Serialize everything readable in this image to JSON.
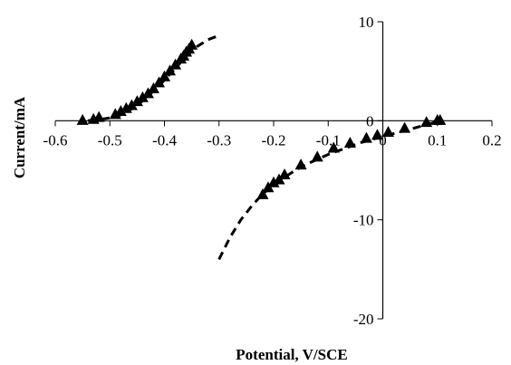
{
  "chart_data": {
    "type": "scatter",
    "title": "",
    "xlabel": "Potential, V/SCE",
    "ylabel": "Current/mA",
    "xlim": [
      -0.6,
      0.2
    ],
    "ylim": [
      -20,
      10
    ],
    "x_ticks": [
      -0.6,
      -0.5,
      -0.4,
      -0.3,
      -0.2,
      -0.1,
      0,
      0.1,
      0.2
    ],
    "x_tick_labels": [
      "-0.6",
      "-0.5",
      "-0.4",
      "-0.3",
      "-0.2",
      "-0.1",
      "0",
      "0.1",
      "0.2"
    ],
    "y_ticks": [
      10,
      0,
      -10,
      -20
    ],
    "y_tick_labels": [
      "10",
      "0",
      "-10",
      "-20"
    ],
    "grid": false,
    "legend": "none",
    "colors": {
      "marks": "#000000"
    },
    "series": [
      {
        "style": "triangle-markers",
        "x": [
          -0.55,
          -0.53,
          -0.52,
          -0.49,
          -0.48,
          -0.47,
          -0.46,
          -0.45,
          -0.44,
          -0.43,
          -0.42,
          -0.41,
          -0.4,
          -0.39,
          -0.38,
          -0.37,
          -0.365,
          -0.36,
          -0.355,
          -0.35
        ],
        "y": [
          0,
          0.1,
          0.3,
          0.6,
          0.9,
          1.2,
          1.5,
          1.9,
          2.3,
          2.7,
          3.2,
          3.8,
          4.4,
          5.0,
          5.6,
          6.2,
          6.5,
          6.9,
          7.2,
          7.6
        ]
      },
      {
        "style": "dashed-line",
        "x": [
          -0.54,
          -0.52,
          -0.5,
          -0.48,
          -0.46,
          -0.44,
          -0.42,
          -0.4,
          -0.38,
          -0.36,
          -0.34,
          -0.32,
          -0.3
        ],
        "y": [
          0,
          0.1,
          0.3,
          0.6,
          1.2,
          2.0,
          3.0,
          4.1,
          5.3,
          6.5,
          7.5,
          8.2,
          8.6
        ]
      },
      {
        "style": "triangle-markers",
        "x": [
          -0.22,
          -0.21,
          -0.2,
          -0.19,
          -0.18,
          -0.15,
          -0.12,
          -0.09,
          -0.06,
          -0.03,
          -0.01,
          0.01,
          0.04,
          0.08,
          0.1,
          0.105
        ],
        "y": [
          -7.5,
          -6.8,
          -6.3,
          -6.0,
          -5.5,
          -4.5,
          -3.7,
          -2.8,
          -2.3,
          -1.8,
          -1.5,
          -1.2,
          -0.8,
          -0.2,
          0,
          0
        ]
      },
      {
        "style": "dashed-line",
        "x": [
          -0.3,
          -0.28,
          -0.26,
          -0.24,
          -0.22,
          -0.2,
          -0.18,
          -0.16,
          -0.14,
          -0.12,
          -0.1,
          -0.08,
          -0.06,
          -0.04,
          -0.02,
          0.0,
          0.02,
          0.04,
          0.06,
          0.08,
          0.1,
          0.11
        ],
        "y": [
          -14.0,
          -11.8,
          -10.0,
          -8.6,
          -7.4,
          -6.5,
          -5.7,
          -5.0,
          -4.4,
          -3.9,
          -3.4,
          -3.0,
          -2.6,
          -2.2,
          -1.9,
          -1.6,
          -1.3,
          -1.0,
          -0.7,
          -0.4,
          -0.1,
          0
        ]
      }
    ]
  }
}
